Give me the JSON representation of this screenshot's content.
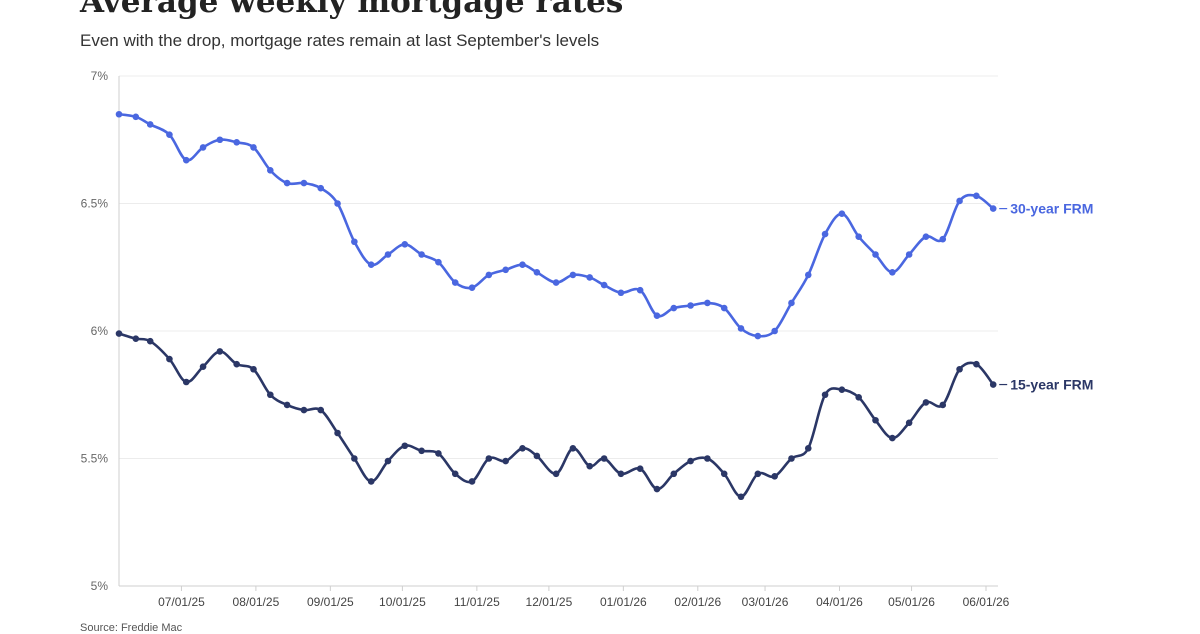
{
  "title": "Average weekly mortgage rates",
  "subtitle": "Even with the drop, mortgage rates remain at last September's levels",
  "source": "Source: Freddie Mac",
  "chart_data": {
    "type": "line",
    "xlabel": "",
    "ylabel": "",
    "ylim": [
      5,
      7
    ],
    "y_ticks": [
      {
        "value": 5,
        "label": "5%"
      },
      {
        "value": 5.5,
        "label": "5.5%"
      },
      {
        "value": 6,
        "label": "6%"
      },
      {
        "value": 6.5,
        "label": "6.5%"
      },
      {
        "value": 7,
        "label": "7%"
      }
    ],
    "xlim": [
      "2025-06-05",
      "2026-06-06"
    ],
    "x_ticks": [
      {
        "date": "2025-07-01",
        "label": "07/01/25"
      },
      {
        "date": "2025-08-01",
        "label": "08/01/25"
      },
      {
        "date": "2025-09-01",
        "label": "09/01/25"
      },
      {
        "date": "2025-10-01",
        "label": "10/01/25"
      },
      {
        "date": "2025-11-01",
        "label": "11/01/25"
      },
      {
        "date": "2025-12-01",
        "label": "12/01/25"
      },
      {
        "date": "2026-01-01",
        "label": "01/01/26"
      },
      {
        "date": "2026-02-01",
        "label": "02/01/26"
      },
      {
        "date": "2026-03-01",
        "label": "03/01/26"
      },
      {
        "date": "2026-04-01",
        "label": "04/01/26"
      },
      {
        "date": "2026-05-01",
        "label": "05/01/26"
      },
      {
        "date": "2026-06-01",
        "label": "06/01/26"
      }
    ],
    "grid": true,
    "legend": "end-of-line labels",
    "x": [
      "2025-06-05",
      "2025-06-12",
      "2025-06-18",
      "2025-06-26",
      "2025-07-03",
      "2025-07-10",
      "2025-07-17",
      "2025-07-24",
      "2025-07-31",
      "2025-08-07",
      "2025-08-14",
      "2025-08-21",
      "2025-08-28",
      "2025-09-04",
      "2025-09-11",
      "2025-09-18",
      "2025-09-25",
      "2025-10-02",
      "2025-10-09",
      "2025-10-16",
      "2025-10-23",
      "2025-10-30",
      "2025-11-06",
      "2025-11-13",
      "2025-11-20",
      "2025-11-26",
      "2025-12-04",
      "2025-12-11",
      "2025-12-18",
      "2025-12-24",
      "2025-12-31",
      "2026-01-08",
      "2026-01-15",
      "2026-01-22",
      "2026-01-29",
      "2026-02-05",
      "2026-02-12",
      "2026-02-19",
      "2026-02-26",
      "2026-03-05",
      "2026-03-12",
      "2026-03-19",
      "2026-03-26",
      "2026-04-02",
      "2026-04-09",
      "2026-04-16",
      "2026-04-23",
      "2026-04-30",
      "2026-05-07",
      "2026-05-14",
      "2026-05-21",
      "2026-05-28",
      "2026-06-04"
    ],
    "series": [
      {
        "name": "30-year FRM",
        "color": "#4a67e0",
        "values": [
          6.85,
          6.84,
          6.81,
          6.77,
          6.67,
          6.72,
          6.75,
          6.74,
          6.72,
          6.63,
          6.58,
          6.58,
          6.56,
          6.5,
          6.35,
          6.26,
          6.3,
          6.34,
          6.3,
          6.27,
          6.19,
          6.17,
          6.22,
          6.24,
          6.26,
          6.23,
          6.19,
          6.22,
          6.21,
          6.18,
          6.15,
          6.16,
          6.06,
          6.09,
          6.1,
          6.11,
          6.09,
          6.01,
          5.98,
          6.0,
          6.11,
          6.22,
          6.38,
          6.46,
          6.37,
          6.3,
          6.23,
          6.3,
          6.37,
          6.36,
          6.51,
          6.53,
          6.48
        ]
      },
      {
        "name": "15-year FRM",
        "color": "#2b3766",
        "values": [
          5.99,
          5.97,
          5.96,
          5.89,
          5.8,
          5.86,
          5.92,
          5.87,
          5.85,
          5.75,
          5.71,
          5.69,
          5.69,
          5.6,
          5.5,
          5.41,
          5.49,
          5.55,
          5.53,
          5.52,
          5.44,
          5.41,
          5.5,
          5.49,
          5.54,
          5.51,
          5.44,
          5.54,
          5.47,
          5.5,
          5.44,
          5.46,
          5.38,
          5.44,
          5.49,
          5.5,
          5.44,
          5.35,
          5.44,
          5.43,
          5.5,
          5.54,
          5.75,
          5.77,
          5.74,
          5.65,
          5.58,
          5.64,
          5.72,
          5.71,
          5.85,
          5.87,
          5.79
        ]
      }
    ]
  }
}
